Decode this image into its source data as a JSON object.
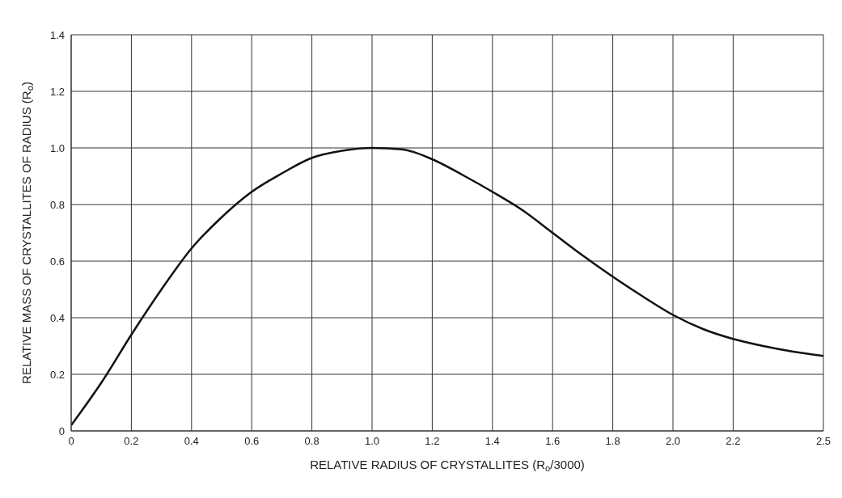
{
  "chart_data": {
    "type": "line",
    "xlabel": "RELATIVE RADIUS OF CRYSTALLITES (R$_{o}$/3000)",
    "ylabel": "RELATIVE MASS OF CRYSTALLITES OF RADIUS (R$_{o}$)",
    "x": [
      0,
      0.1,
      0.2,
      0.3,
      0.4,
      0.5,
      0.6,
      0.7,
      0.8,
      0.9,
      1.0,
      1.1,
      1.2,
      1.3,
      1.4,
      1.5,
      1.6,
      1.7,
      1.8,
      1.9,
      2.0,
      2.1,
      2.2,
      2.3,
      2.4,
      2.5
    ],
    "series": [
      {
        "color": "#111111",
        "values": [
          0.02,
          0.17,
          0.34,
          0.5,
          0.645,
          0.755,
          0.845,
          0.91,
          0.965,
          0.99,
          1.0,
          0.995,
          0.96,
          0.905,
          0.845,
          0.78,
          0.7,
          0.62,
          0.545,
          0.475,
          0.41,
          0.36,
          0.325,
          0.3,
          0.28,
          0.265
        ]
      }
    ],
    "xlim": [
      0,
      2.5
    ],
    "ylim": [
      0,
      1.4
    ],
    "xticks": [
      0,
      0.2,
      0.4,
      0.6,
      0.8,
      {
        "value": 1,
        "label": "1.0"
      },
      1.2,
      1.4,
      1.6,
      1.8,
      {
        "value": 2,
        "label": "2.0"
      },
      2.2,
      2.5
    ],
    "yticks": [
      0,
      0.2,
      0.4,
      0.6,
      0.8,
      {
        "value": 1,
        "label": "1.0"
      },
      1.2,
      1.4
    ],
    "grid": true,
    "marker": "none",
    "line_style": "solid"
  }
}
